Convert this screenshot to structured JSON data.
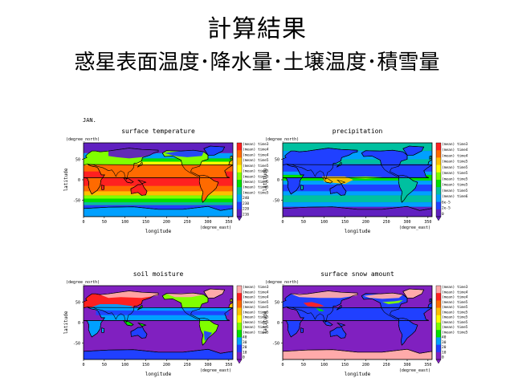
{
  "slide": {
    "title": "計算結果",
    "subtitle": "惑星表面温度･降水量･土壌温度･積雪量",
    "month": "JAN."
  },
  "chart_data": [
    {
      "type": "heatmap",
      "title": "surface temperature",
      "xlabel": "longitude",
      "ylabel": "latitude",
      "x_unit": "(degree_east)",
      "y_unit": "(degree_north)",
      "xticks": [
        "0",
        "50",
        "100",
        "150",
        "200",
        "250",
        "300",
        "350"
      ],
      "yticks": [
        "50",
        "0",
        "-50"
      ],
      "colorbar_labels": [
        "(mean) time3",
        "(mean) time4",
        "(mean) time4",
        "(mean) time5",
        "(mean) time5",
        "(mean) time5",
        "(mean) time5",
        "(mean) time5",
        "(mean) time5",
        "(mean) time5",
        "240",
        "230",
        "220",
        "216"
      ],
      "colors": [
        "#ff2020",
        "#ff6a00",
        "#ffc000",
        "#ffff00",
        "#80ff00",
        "#00e000",
        "#00c0a0",
        "#00a0ff",
        "#2040ff",
        "#6020c0"
      ]
    },
    {
      "type": "heatmap",
      "title": "precipitation",
      "xlabel": "longitude",
      "ylabel": "latitude",
      "x_unit": "(degree_east)",
      "y_unit": "(degree_north)",
      "xticks": [
        "0",
        "50",
        "100",
        "150",
        "200",
        "250",
        "300",
        "350"
      ],
      "yticks": [
        "50",
        "0",
        "-50"
      ],
      "colorbar_labels": [
        "(mean) time3",
        "(mean) time4",
        "(mean) time4",
        "(mean) time5",
        "(mean) time5",
        "(mean) time5",
        "(mean) time5",
        "(mean) time5",
        "(mean) time5",
        "(mean) time6",
        "6e-5",
        "2e-5",
        "0"
      ],
      "colors": [
        "#ff2020",
        "#ff6a00",
        "#ffc000",
        "#ffff00",
        "#80ff00",
        "#00e000",
        "#00c0a0",
        "#00a0ff",
        "#2040ff",
        "#6020c0"
      ]
    },
    {
      "type": "heatmap",
      "title": "soil moisture",
      "xlabel": "longitude",
      "ylabel": "latitude",
      "x_unit": "(degree_east)",
      "y_unit": "(degree_north)",
      "xticks": [
        "0",
        "50",
        "100",
        "150",
        "200",
        "250",
        "300",
        "350"
      ],
      "yticks": [
        "50",
        "0",
        "-50"
      ],
      "colorbar_labels": [
        "(mean) time3",
        "(mean) time4",
        "(mean) time4",
        "(mean) time5",
        "(mean) time5",
        "(mean) time5",
        "(mean) time5",
        "(mean) time5",
        "(mean) time5",
        "(mean) time5",
        "40",
        "30",
        "20",
        "10",
        "0"
      ],
      "colors": [
        "#ffaaaa",
        "#ff2020",
        "#ff6a00",
        "#ffc000",
        "#ffff00",
        "#80ff00",
        "#00e000",
        "#00a0ff",
        "#2040ff",
        "#8020c0"
      ]
    },
    {
      "type": "heatmap",
      "title": "surface snow amount",
      "xlabel": "longitude",
      "ylabel": "latitude",
      "x_unit": "(degree_east)",
      "y_unit": "(degree_north)",
      "xticks": [
        "0",
        "50",
        "100",
        "150",
        "200",
        "250",
        "300",
        "350"
      ],
      "yticks": [
        "50",
        "0",
        "-50"
      ],
      "colorbar_labels": [
        "(mean) time3",
        "(mean) time4",
        "(mean) time4",
        "(mean) time5",
        "(mean) time5",
        "(mean) time5",
        "(mean) time5",
        "(mean) time5",
        "(mean) time5",
        "(mean) time5",
        "40",
        "30",
        "20",
        "10",
        "0"
      ],
      "colors": [
        "#ffaaaa",
        "#ff2020",
        "#ff6a00",
        "#ffc000",
        "#ffff00",
        "#80ff00",
        "#00e000",
        "#00a0ff",
        "#2040ff",
        "#8020c0"
      ]
    }
  ]
}
